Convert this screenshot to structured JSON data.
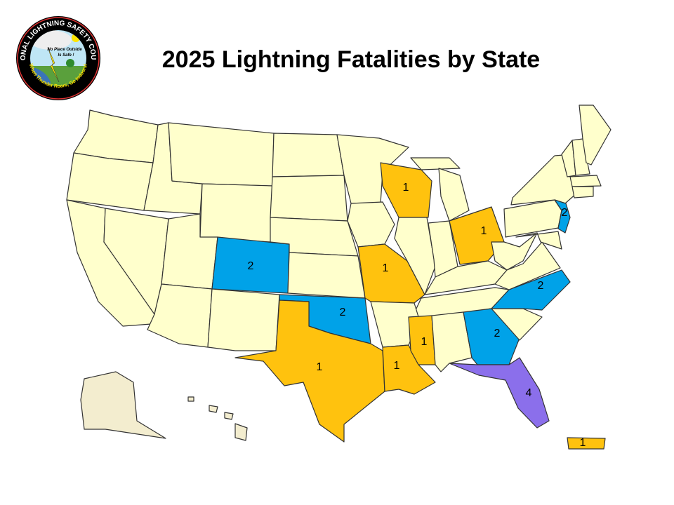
{
  "title": "2025 Lightning Fatalities by State",
  "logo": {
    "top_text": "NATIONAL LIGHTNING SAFETY COUNCIL",
    "middle_text_1": "No Place Outside",
    "middle_text_2": "Is Safe !",
    "bottom_text": "When Thunder Roars, Go Indoors!"
  },
  "colors": {
    "zero": "#FFFFCC",
    "one": "#FFC20E",
    "two": "#00A2E8",
    "four": "#8B6FEB",
    "alaska": "#F3EDCF",
    "border": "#333333"
  },
  "fatalities": [
    {
      "state": "WI",
      "count": "1"
    },
    {
      "state": "OH",
      "count": "1"
    },
    {
      "state": "MO",
      "count": "1"
    },
    {
      "state": "CO",
      "count": "2"
    },
    {
      "state": "OK",
      "count": "2"
    },
    {
      "state": "NC",
      "count": "2"
    },
    {
      "state": "NJ",
      "count": "2"
    },
    {
      "state": "GA",
      "count": "2"
    },
    {
      "state": "MS",
      "count": "1"
    },
    {
      "state": "LA",
      "count": "1"
    },
    {
      "state": "TX",
      "count": "1"
    },
    {
      "state": "FL",
      "count": "4"
    },
    {
      "state": "PR",
      "count": "1"
    }
  ]
}
